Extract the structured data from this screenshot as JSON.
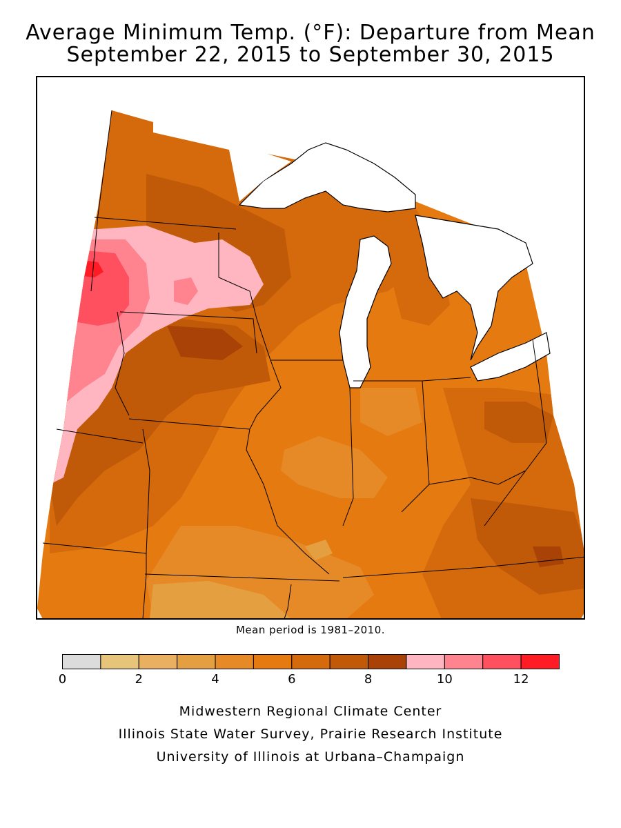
{
  "title": {
    "line1": "Average Minimum Temp. (°F): Departure from Mean",
    "line2": "September 22, 2015 to September 30, 2015"
  },
  "note": "Mean period is 1981–2010.",
  "legend": {
    "bins": [
      {
        "from": 0,
        "to": 1,
        "color": "#dcdcdc"
      },
      {
        "from": 1,
        "to": 2,
        "color": "#e6c47a"
      },
      {
        "from": 2,
        "to": 3,
        "color": "#e8b060"
      },
      {
        "from": 3,
        "to": 4,
        "color": "#e4a040"
      },
      {
        "from": 4,
        "to": 5,
        "color": "#e68a28"
      },
      {
        "from": 5,
        "to": 6,
        "color": "#e47a10"
      },
      {
        "from": 6,
        "to": 7,
        "color": "#d46a0c"
      },
      {
        "from": 7,
        "to": 8,
        "color": "#c05a08"
      },
      {
        "from": 8,
        "to": 9,
        "color": "#a84206"
      },
      {
        "from": 9,
        "to": 10,
        "color": "#ffb6c1"
      },
      {
        "from": 10,
        "to": 11,
        "color": "#ff8490"
      },
      {
        "from": 11,
        "to": 12,
        "color": "#ff5060"
      },
      {
        "from": 12,
        "to": 13,
        "color": "#ff1c24"
      }
    ],
    "tick_labels": [
      "0",
      "2",
      "4",
      "6",
      "8",
      "10",
      "12"
    ]
  },
  "credits": [
    "Midwestern Regional Climate Center",
    "Illinois State Water Survey, Prairie Research Institute",
    "University of Illinois at Urbana–Champaign"
  ],
  "colors": {
    "lake_fill": "#ffffff",
    "outside_fill": "#ffffff",
    "boundary": "#000000"
  }
}
